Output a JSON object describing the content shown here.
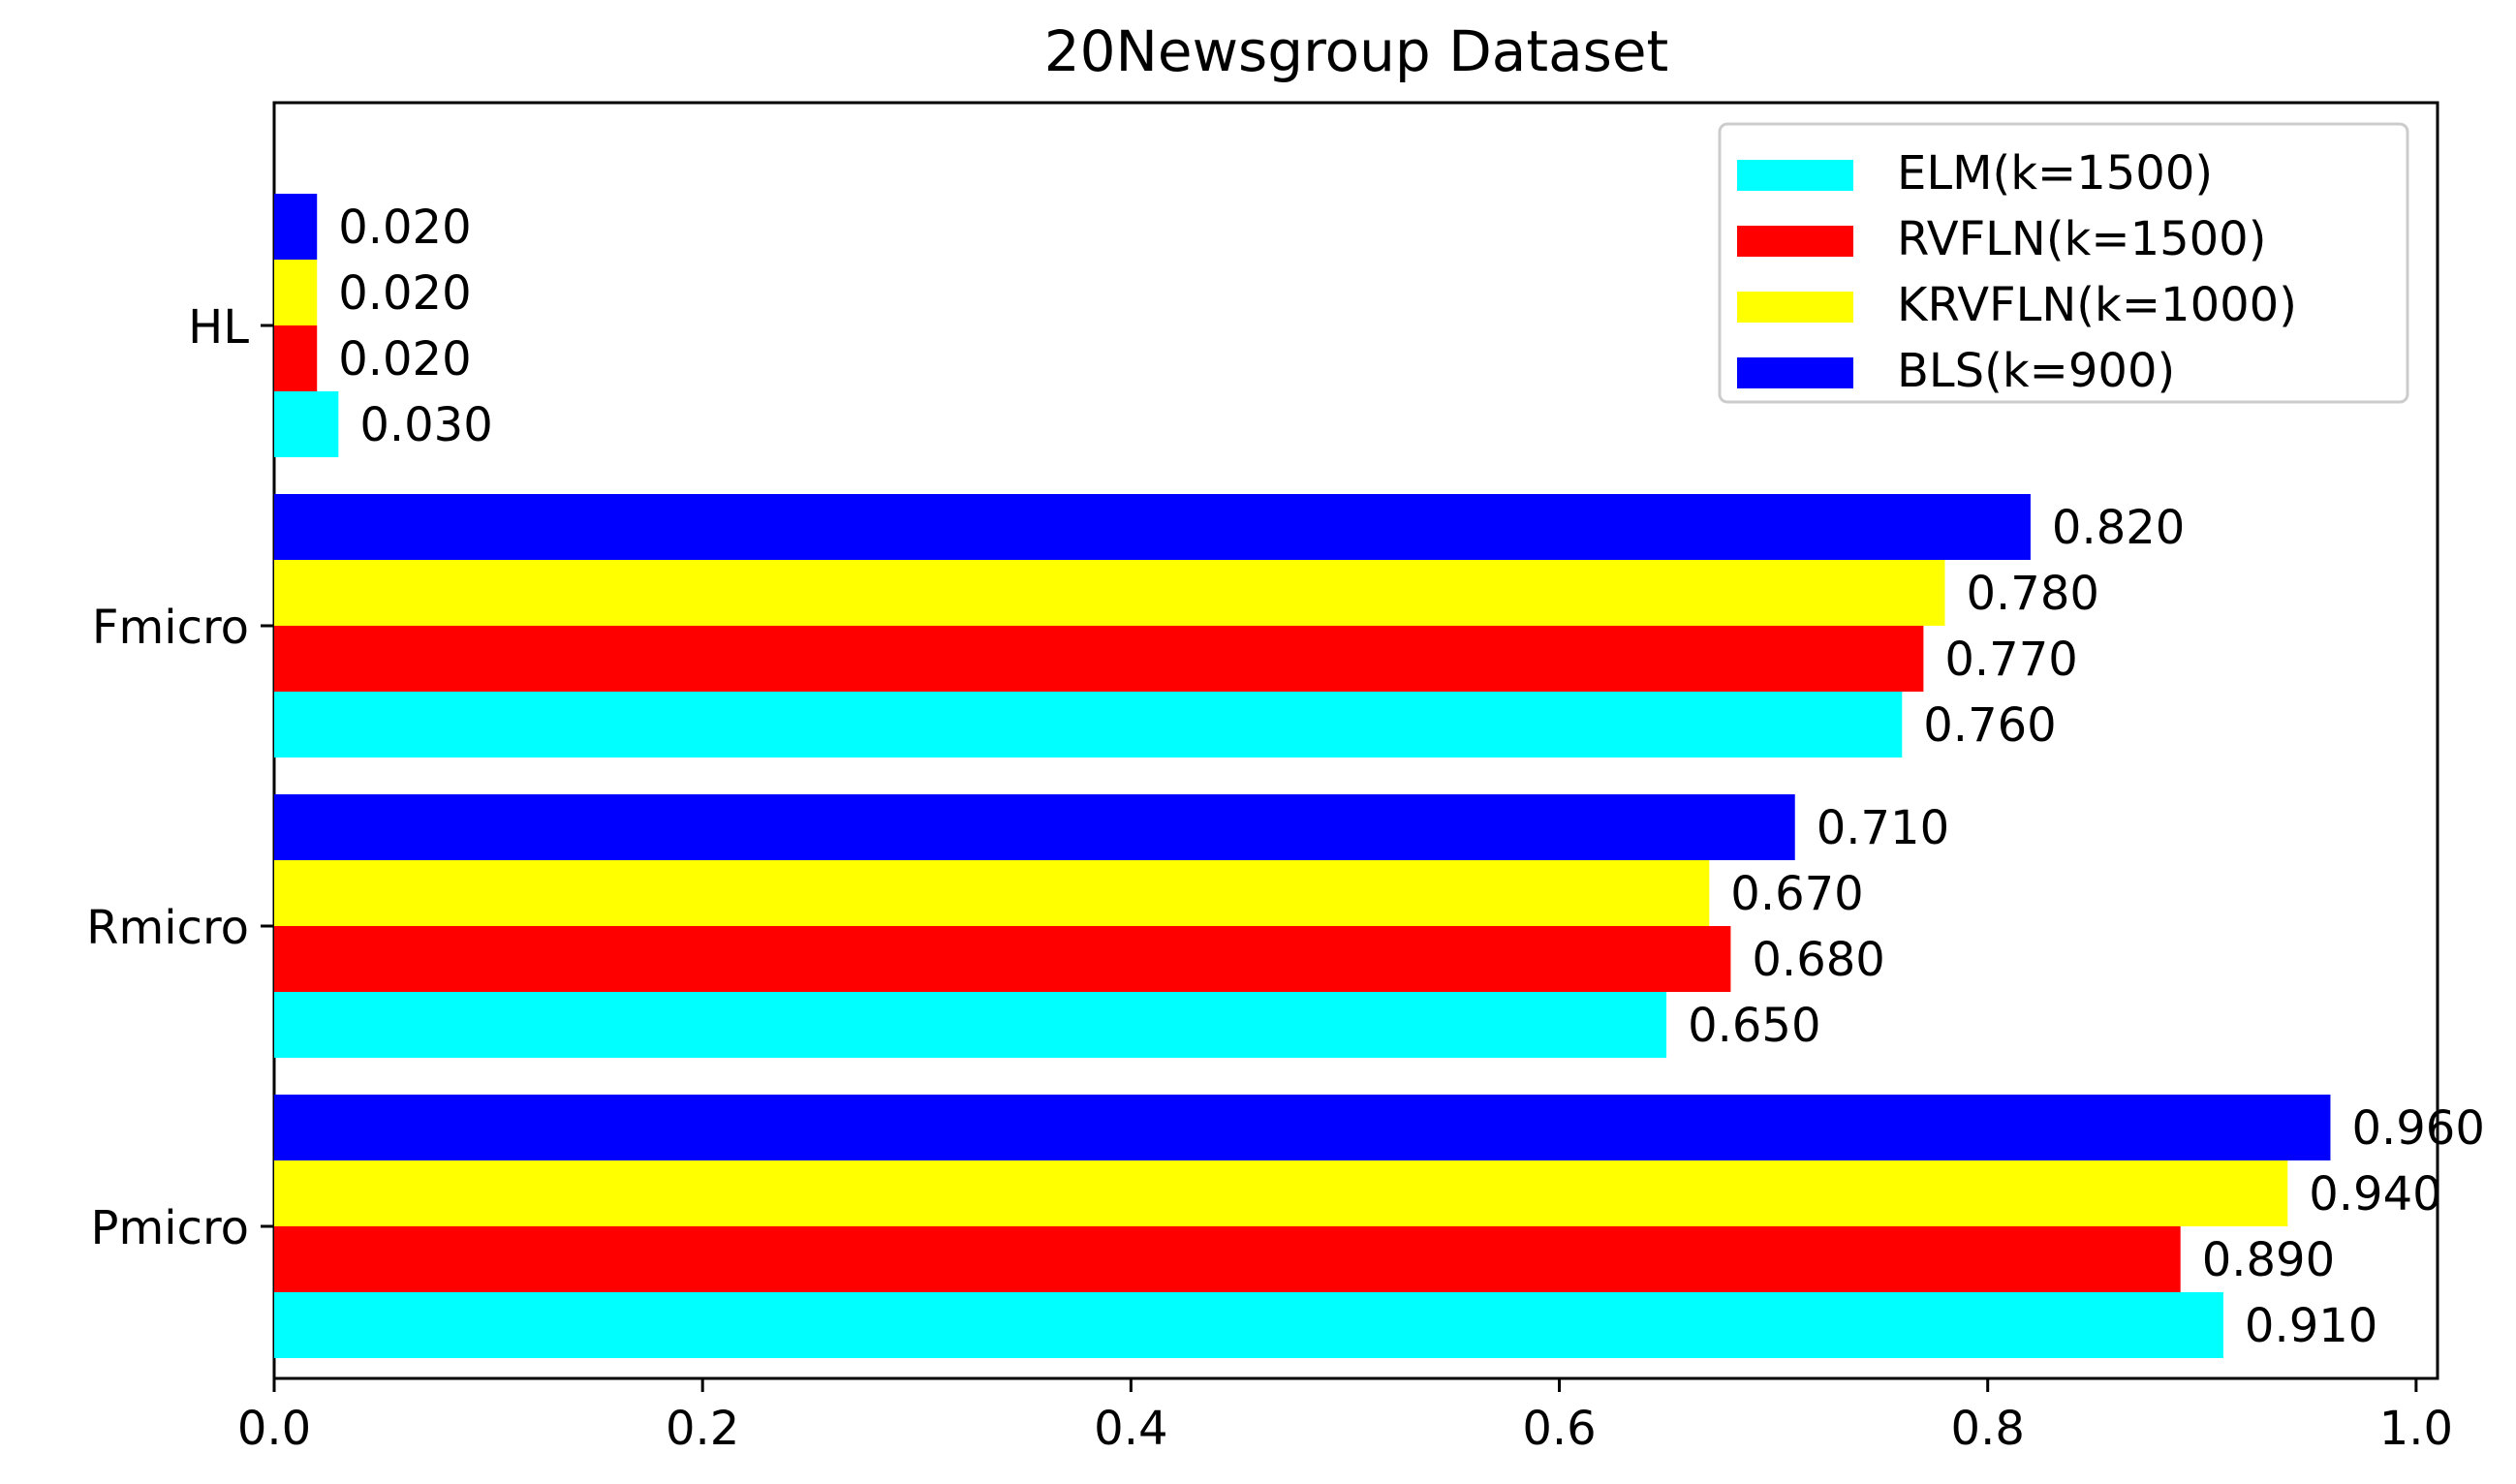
{
  "chart_data": {
    "type": "bar",
    "orientation": "horizontal",
    "title": "20Newsgroup Dataset",
    "xlabel": "",
    "ylabel": "",
    "categories": [
      "Pmicro",
      "Rmicro",
      "Fmicro",
      "HL"
    ],
    "series": [
      {
        "name": "ELM(k=1500)",
        "color": "#00ffff",
        "values": [
          0.91,
          0.65,
          0.76,
          0.03
        ]
      },
      {
        "name": "RVFLN(k=1500)",
        "color": "#ff0000",
        "values": [
          0.89,
          0.68,
          0.77,
          0.02
        ]
      },
      {
        "name": "KRVFLN(k=1000)",
        "color": "#ffff00",
        "values": [
          0.94,
          0.67,
          0.78,
          0.02
        ]
      },
      {
        "name": "BLS(k=900)",
        "color": "#0000ff",
        "values": [
          0.96,
          0.71,
          0.82,
          0.02
        ]
      }
    ],
    "xlim": [
      0.0,
      1.01
    ],
    "xticks": [
      "0.0",
      "0.2",
      "0.4",
      "0.6",
      "0.8",
      "1.0"
    ],
    "value_format_decimals": 3,
    "legend_position": "top-right",
    "grid": false
  }
}
